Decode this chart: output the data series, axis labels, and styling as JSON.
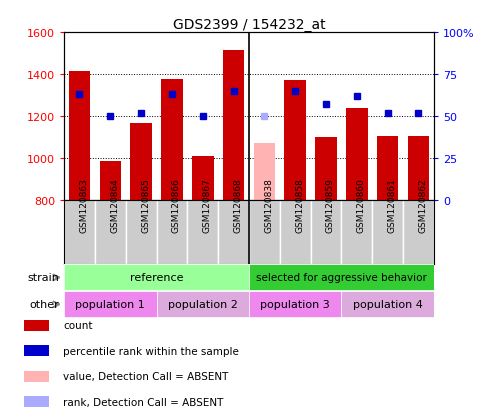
{
  "title": "GDS2399 / 154232_at",
  "samples": [
    "GSM120863",
    "GSM120864",
    "GSM120865",
    "GSM120866",
    "GSM120867",
    "GSM120868",
    "GSM120838",
    "GSM120858",
    "GSM120859",
    "GSM120860",
    "GSM120861",
    "GSM120862"
  ],
  "counts": [
    1415,
    985,
    1165,
    1375,
    1010,
    1515,
    null,
    1370,
    1100,
    1240,
    1105,
    1105
  ],
  "absent_counts": [
    null,
    null,
    null,
    null,
    null,
    null,
    1070,
    null,
    null,
    null,
    null,
    null
  ],
  "ranks": [
    63,
    50,
    52,
    63,
    50,
    65,
    null,
    65,
    57,
    62,
    52,
    52
  ],
  "absent_ranks": [
    null,
    null,
    null,
    null,
    null,
    null,
    50,
    null,
    null,
    null,
    null,
    null
  ],
  "ylim": [
    800,
    1600
  ],
  "y2lim": [
    0,
    100
  ],
  "yticks": [
    800,
    1000,
    1200,
    1400,
    1600
  ],
  "y2ticks": [
    0,
    25,
    50,
    75,
    100
  ],
  "bar_color": "#cc0000",
  "absent_bar_color": "#ffb3b3",
  "rank_color": "#0000cc",
  "absent_rank_color": "#aaaaff",
  "strain_ref_color": "#99ff99",
  "strain_sel_color": "#33cc33",
  "pop_color": "#ee88ee",
  "pop_color2": "#ddaadd",
  "bg_xtick_color": "#cccccc",
  "strain_ref_label": "reference",
  "strain_sel_label": "selected for aggressive behavior",
  "pop1_label": "population 1",
  "pop2_label": "population 2",
  "pop3_label": "population 3",
  "pop4_label": "population 4",
  "legend_items": [
    {
      "label": "count",
      "color": "#cc0000"
    },
    {
      "label": "percentile rank within the sample",
      "color": "#0000cc"
    },
    {
      "label": "value, Detection Call = ABSENT",
      "color": "#ffb3b3"
    },
    {
      "label": "rank, Detection Call = ABSENT",
      "color": "#aaaaff"
    }
  ],
  "ref_indices": [
    0,
    1,
    2,
    3,
    4,
    5
  ],
  "sel_indices": [
    6,
    7,
    8,
    9,
    10,
    11
  ],
  "pop1_indices": [
    0,
    1,
    2
  ],
  "pop2_indices": [
    3,
    4,
    5
  ],
  "pop3_indices": [
    6,
    7,
    8
  ],
  "pop4_indices": [
    9,
    10,
    11
  ]
}
